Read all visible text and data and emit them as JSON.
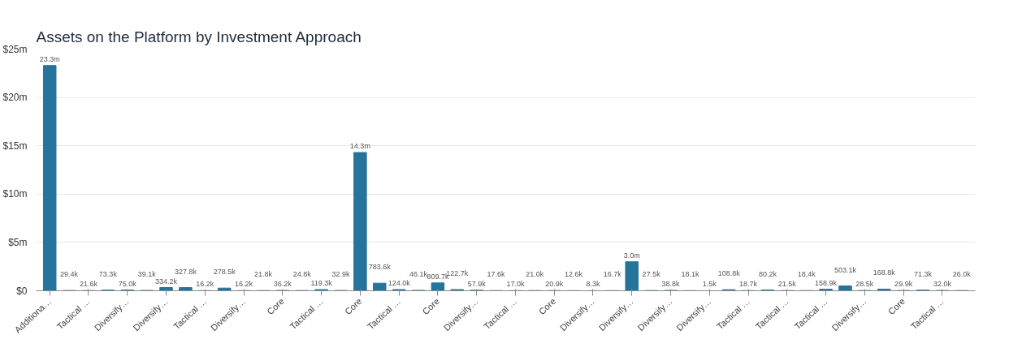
{
  "chart_data": {
    "type": "bar",
    "title": "Assets on the Platform by Investment Approach",
    "categories": [
      "Additiona…",
      null,
      "Tactical …",
      null,
      "Diversify…",
      null,
      "Diversify…",
      null,
      "Tactical …",
      null,
      "Diversify…",
      null,
      "Core",
      null,
      "Tactical …",
      null,
      "Core",
      null,
      "Tactical …",
      null,
      "Core",
      null,
      "Diversify…",
      null,
      "Tactical …",
      null,
      "Core",
      null,
      "Diversify…",
      null,
      "Diversify…",
      null,
      "Diversify…",
      null,
      "Diversify…",
      null,
      "Tactical …",
      null,
      "Tactical …",
      null,
      "Tactical …",
      null,
      "Diversify…",
      null,
      "Core",
      null,
      "Tactical …",
      null
    ],
    "values": [
      23300000,
      29400,
      21600,
      73300,
      75000,
      39100,
      334200,
      327800,
      16200,
      278500,
      16200,
      21800,
      36200,
      24800,
      119300,
      32900,
      14300000,
      783600,
      124000,
      46100,
      809700,
      122700,
      57900,
      17600,
      17000,
      21000,
      20900,
      12600,
      8300,
      16700,
      3000000,
      27500,
      38800,
      18100,
      1500,
      108800,
      18700,
      80200,
      21500,
      18400,
      158900,
      503100,
      28500,
      168800,
      29900,
      71300,
      32000,
      26000
    ],
    "value_labels": [
      "23.3m",
      "29.4k",
      "21.6k",
      "73.3k",
      "75.0k",
      "39.1k",
      "334.2k",
      "327.8k",
      "16.2k",
      "278.5k",
      "16.2k",
      "21.8k",
      "36.2k",
      "24.8k",
      "119.3k",
      "32.9k",
      "14.3m",
      "783.6k",
      "124.0k",
      "46.1k",
      "809.7k",
      "122.7k",
      "57.9k",
      "17.6k",
      "17.0k",
      "21.0k",
      "20.9k",
      "12.6k",
      "8.3k",
      "16.7k",
      "3.0m",
      "27.5k",
      "38.8k",
      "18.1k",
      "1.5k",
      "108.8k",
      "18.7k",
      "80.2k",
      "21.5k",
      "18.4k",
      "158.9k",
      "503.1k",
      "28.5k",
      "168.8k",
      "29.9k",
      "71.3k",
      "32.0k",
      "26.0k"
    ],
    "color": "#26739b",
    "ylim": [
      0,
      25000000
    ],
    "yticks": [
      {
        "value": 0,
        "label": "$0"
      },
      {
        "value": 5000000,
        "label": "$5m"
      },
      {
        "value": 10000000,
        "label": "$10m"
      },
      {
        "value": 15000000,
        "label": "$15m"
      },
      {
        "value": 20000000,
        "label": "$20m"
      },
      {
        "value": 25000000,
        "label": "$25m"
      }
    ],
    "grid": "y"
  }
}
